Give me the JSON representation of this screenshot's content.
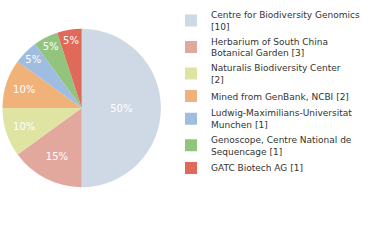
{
  "chart_data": {
    "type": "pie",
    "categories": [
      "Centre for Biodiversity Genomics [10]",
      "Herbarium of South China Botanical Garden [3]",
      "Naturalis Biodiversity Center [2]",
      "Mined from GenBank, NCBI [2]",
      "Ludwig-Maximilians-Universitat Munchen [1]",
      "Genoscope, Centre National de Sequencage [1]",
      "GATC Biotech AG [1]"
    ],
    "values": [
      50,
      15,
      10,
      10,
      5,
      5,
      5
    ],
    "value_labels": [
      "50%",
      "15%",
      "10%",
      "10%",
      "5%",
      "5%",
      "5%"
    ],
    "colors": [
      "#cfd9e5",
      "#e2a89e",
      "#dfe4a3",
      "#f1b27a",
      "#9fbde1",
      "#92c47e",
      "#e06a5a"
    ],
    "data_labels": true,
    "legend": "right"
  }
}
